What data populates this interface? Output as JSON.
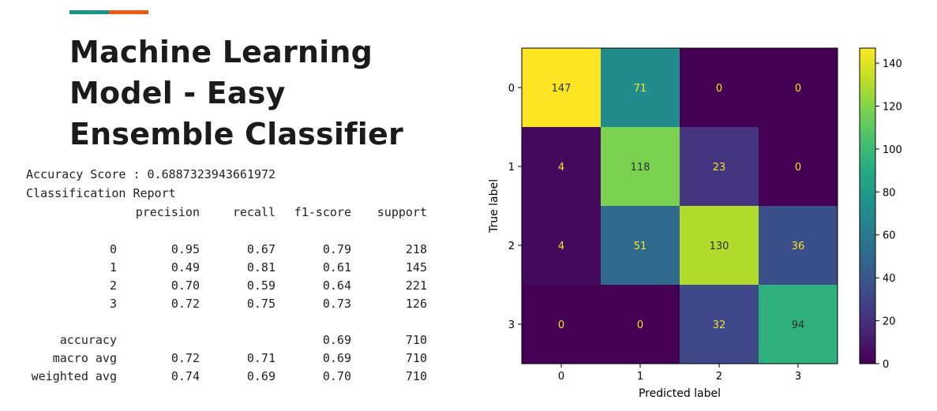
{
  "slide": {
    "accent_colors": [
      "#1a9389",
      "#ec5a13"
    ],
    "title_lines": [
      "Machine Learning",
      "Model - Easy",
      "Ensemble Classifier"
    ]
  },
  "report": {
    "accuracy_line": "Accuracy Score : 0.6887323943661972",
    "report_title": "Classification Report",
    "headers": [
      "precision",
      "recall",
      "f1-score",
      "support"
    ],
    "class_rows": [
      {
        "label": "0",
        "precision": "0.95",
        "recall": "0.67",
        "f1": "0.79",
        "support": "218"
      },
      {
        "label": "1",
        "precision": "0.49",
        "recall": "0.81",
        "f1": "0.61",
        "support": "145"
      },
      {
        "label": "2",
        "precision": "0.70",
        "recall": "0.59",
        "f1": "0.64",
        "support": "221"
      },
      {
        "label": "3",
        "precision": "0.72",
        "recall": "0.75",
        "f1": "0.73",
        "support": "126"
      }
    ],
    "summary_rows": [
      {
        "label": "accuracy",
        "precision": "",
        "recall": "",
        "f1": "0.69",
        "support": "710"
      },
      {
        "label": "macro avg",
        "precision": "0.72",
        "recall": "0.71",
        "f1": "0.69",
        "support": "710"
      },
      {
        "label": "weighted avg",
        "precision": "0.74",
        "recall": "0.69",
        "f1": "0.70",
        "support": "710"
      }
    ]
  },
  "chart_data": {
    "type": "heatmap",
    "xlabel": "Predicted label",
    "ylabel": "True label",
    "x_categories": [
      "0",
      "1",
      "2",
      "3"
    ],
    "y_categories": [
      "0",
      "1",
      "2",
      "3"
    ],
    "values": [
      [
        147,
        71,
        0,
        0
      ],
      [
        4,
        118,
        23,
        0
      ],
      [
        4,
        51,
        130,
        36
      ],
      [
        0,
        0,
        32,
        94
      ]
    ],
    "colormap": "viridis",
    "colorbar": {
      "min": 0,
      "max": 147,
      "ticks": [
        0,
        20,
        40,
        60,
        80,
        100,
        120,
        140
      ]
    }
  }
}
